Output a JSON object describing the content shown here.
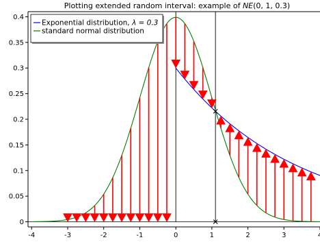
{
  "chart_data": {
    "type": "line",
    "title": "Plotting extended random interval: example of $NE(0,1,0.3)$",
    "title_display": {
      "prefix": "Plotting extended random interval: example of ",
      "math": "NE",
      "args": "(0, 1, 0.3)"
    },
    "xlabel": "",
    "ylabel": "",
    "xlim": [
      -4.1,
      4.0
    ],
    "ylim": [
      -0.01,
      0.41
    ],
    "xticks": [
      -4,
      -3,
      -2,
      -1,
      0,
      1,
      2,
      3,
      4
    ],
    "xtick_labels": [
      "-4",
      "-3",
      "-2",
      "-1",
      "0",
      "1",
      "2",
      "3",
      "4"
    ],
    "yticks": [
      0,
      0.05,
      0.1,
      0.15,
      0.2,
      0.25,
      0.3,
      0.35,
      0.4
    ],
    "ytick_labels": [
      "0",
      "0.05",
      "0.1",
      "0.15",
      "0.2",
      "0.25",
      "0.3",
      "0.35",
      "0.4"
    ],
    "grid": false,
    "legend_position": "top-left",
    "series": [
      {
        "name": "Exponential distribution, $\\lambda = 0.3$",
        "legend_prefix": "Exponential distribution, ",
        "legend_math": "λ = 0.3",
        "color": "#0000ff",
        "function": "0.3*exp(-0.3*x) for x >= 0",
        "domain": [
          0,
          4.0
        ]
      },
      {
        "name": "standard normal distribution",
        "legend_prefix": "standard normal distribution",
        "legend_math": "",
        "color": "#008000",
        "function": "exp(-x^2/2)/sqrt(2*pi)",
        "domain": [
          -4.0,
          4.0
        ]
      }
    ],
    "arrows_normal_to_zero": [
      -3.0,
      -2.75,
      -2.5,
      -2.25,
      -2.0,
      -1.75,
      -1.5,
      -1.25,
      -1.0,
      -0.75,
      -0.5,
      -0.25
    ],
    "arrows_normal_to_exponential": [
      0.0,
      0.25,
      0.5,
      0.75,
      1.0,
      1.25,
      1.5,
      1.75,
      2.0,
      2.25,
      2.5,
      2.75,
      3.0,
      3.25,
      3.5,
      3.75
    ],
    "arrow_color": "#ff0000",
    "vertical_lines": [
      0,
      1.1
    ],
    "markers": [
      {
        "x": 1.1,
        "y": 0.2156
      },
      {
        "x": 1.1,
        "y": 0
      }
    ]
  }
}
